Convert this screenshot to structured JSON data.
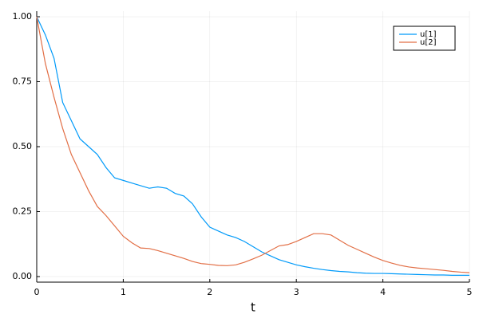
{
  "chart_data": {
    "type": "line",
    "x_label": "t",
    "x": [
      0,
      0.1,
      0.2,
      0.3,
      0.4,
      0.5,
      0.6,
      0.7,
      0.8,
      0.9,
      1,
      1.1,
      1.2,
      1.3,
      1.4,
      1.5,
      1.6,
      1.7,
      1.8,
      1.9,
      2,
      2.1,
      2.2,
      2.3,
      2.4,
      2.5,
      2.6,
      2.7,
      2.8,
      2.9,
      3,
      3.1,
      3.2,
      3.3,
      3.4,
      3.5,
      3.6,
      3.7,
      3.8,
      3.9,
      4,
      4.1,
      4.2,
      4.3,
      4.4,
      4.5,
      4.6,
      4.7,
      4.8,
      4.9,
      5
    ],
    "series": [
      {
        "name": "u[1]",
        "color": "#009af9",
        "values": [
          1.0,
          0.93,
          0.84,
          0.67,
          0.6,
          0.53,
          0.5,
          0.47,
          0.42,
          0.38,
          0.37,
          0.36,
          0.35,
          0.34,
          0.345,
          0.34,
          0.32,
          0.31,
          0.28,
          0.23,
          0.19,
          0.175,
          0.16,
          0.15,
          0.135,
          0.115,
          0.095,
          0.08,
          0.065,
          0.055,
          0.045,
          0.038,
          0.032,
          0.027,
          0.023,
          0.02,
          0.018,
          0.015,
          0.013,
          0.012,
          0.012,
          0.011,
          0.01,
          0.009,
          0.008,
          0.007,
          0.006,
          0.006,
          0.005,
          0.005,
          0.005
        ]
      },
      {
        "name": "u[2]",
        "color": "#e26f46",
        "values": [
          1.0,
          0.82,
          0.69,
          0.57,
          0.47,
          0.4,
          0.33,
          0.27,
          0.235,
          0.195,
          0.155,
          0.13,
          0.11,
          0.108,
          0.1,
          0.09,
          0.08,
          0.07,
          0.058,
          0.05,
          0.047,
          0.043,
          0.042,
          0.045,
          0.055,
          0.068,
          0.082,
          0.1,
          0.118,
          0.123,
          0.135,
          0.15,
          0.165,
          0.165,
          0.16,
          0.14,
          0.12,
          0.105,
          0.09,
          0.075,
          0.062,
          0.052,
          0.043,
          0.037,
          0.033,
          0.03,
          0.027,
          0.024,
          0.02,
          0.017,
          0.015
        ]
      }
    ],
    "xlim": [
      0,
      5
    ],
    "xticks": [
      0,
      1,
      2,
      3,
      4,
      5
    ],
    "ylim": [
      -0.0215,
      1.0215
    ],
    "yticks": [
      {
        "value": 0,
        "label": "0.00"
      },
      {
        "value": 0.25,
        "label": "0.25"
      },
      {
        "value": 0.5,
        "label": "0.50"
      },
      {
        "value": 0.75,
        "label": "0.75"
      },
      {
        "value": 1,
        "label": "1.00"
      }
    ],
    "grid": true,
    "legend": "top-right"
  }
}
